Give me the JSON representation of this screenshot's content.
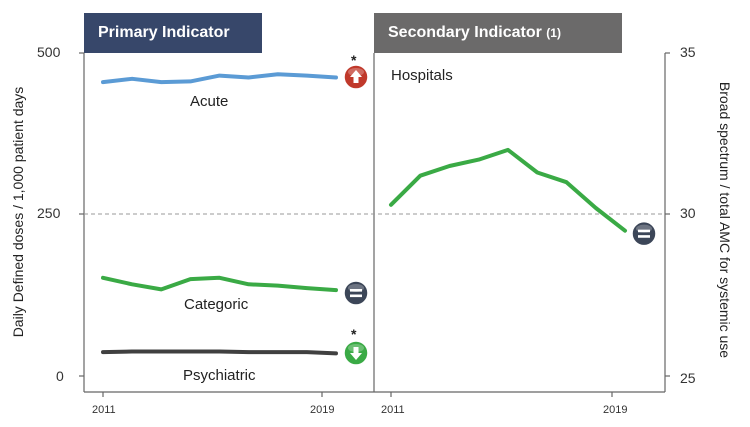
{
  "panels": {
    "primary_title": "Primary Indicator",
    "secondary_title": "Secondary Indicator",
    "secondary_note": "(1)"
  },
  "axes": {
    "left_label": "Daily Defined doses / 1,000 patient days",
    "right_label": "Broad spectrum / total AMC for systemic use",
    "left_ticks": [
      "500",
      "250",
      "0"
    ],
    "right_ticks": [
      "35",
      "30",
      "25"
    ],
    "x_ticks_primary": [
      "2011",
      "2019"
    ],
    "x_ticks_secondary": [
      "2011",
      "2019"
    ]
  },
  "labels": {
    "acute": "Acute",
    "categoric": "Categoric",
    "psychiatric": "Psychiatric",
    "hospitals": "Hospitals",
    "star": "*"
  },
  "chart_data": [
    {
      "type": "line",
      "panel": "Primary Indicator",
      "ylabel": "Daily Defined doses / 1,000 patient days",
      "ylim": [
        0,
        500
      ],
      "x": [
        2011,
        2012,
        2013,
        2014,
        2015,
        2016,
        2017,
        2018,
        2019
      ],
      "series": [
        {
          "name": "Acute",
          "color": "#5b9bd5",
          "trend": "up",
          "significant": true,
          "values": [
            455,
            460,
            455,
            456,
            465,
            462,
            467,
            465,
            462
          ]
        },
        {
          "name": "Categoric",
          "color": "#3aaa45",
          "trend": "equal",
          "significant": false,
          "values": [
            152,
            142,
            134,
            150,
            152,
            142,
            140,
            136,
            133
          ]
        },
        {
          "name": "Psychiatric",
          "color": "#404040",
          "trend": "down",
          "significant": true,
          "values": [
            37,
            38,
            38,
            38,
            38,
            37,
            37,
            37,
            35
          ]
        }
      ]
    },
    {
      "type": "line",
      "panel": "Secondary Indicator",
      "ylabel": "Broad spectrum / total AMC for systemic use",
      "ylim": [
        25,
        35
      ],
      "x": [
        2011,
        2012,
        2013,
        2014,
        2015,
        2016,
        2017,
        2018,
        2019
      ],
      "series": [
        {
          "name": "Hospitals",
          "color": "#3aaa45",
          "trend": "equal",
          "significant": false,
          "values": [
            30.3,
            31.2,
            31.5,
            31.7,
            32.0,
            31.3,
            31.0,
            30.2,
            29.5
          ]
        }
      ]
    }
  ]
}
